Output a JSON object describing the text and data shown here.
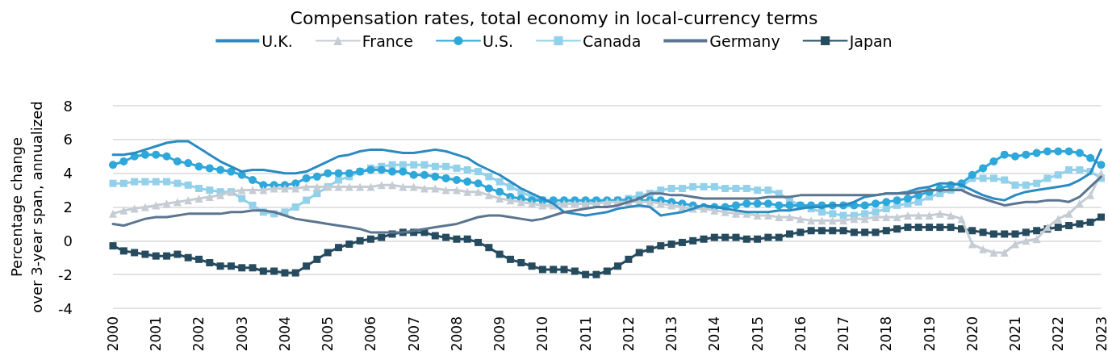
{
  "chart_data": {
    "type": "line",
    "title": "Compensation rates, total economy in local-currency terms",
    "ylabel": "Percentage change\nover 3-year span, annualized",
    "categories": [
      "2000",
      null,
      null,
      null,
      "2001",
      null,
      null,
      null,
      "2002",
      null,
      null,
      null,
      "2003",
      null,
      null,
      null,
      "2004",
      null,
      null,
      null,
      "2005",
      null,
      null,
      null,
      "2006",
      null,
      null,
      null,
      "2007",
      null,
      null,
      null,
      "2008",
      null,
      null,
      null,
      "2009",
      null,
      null,
      null,
      "2010",
      null,
      null,
      null,
      "2011",
      null,
      null,
      null,
      "2012",
      null,
      null,
      null,
      "2013",
      null,
      null,
      null,
      "2014",
      null,
      null,
      null,
      "2015",
      null,
      null,
      null,
      "2016",
      null,
      null,
      null,
      "2017",
      null,
      null,
      null,
      "2018",
      null,
      null,
      null,
      "2019",
      null,
      null,
      null,
      "2020",
      null,
      null,
      null,
      "2021",
      null,
      null,
      null,
      "2022",
      null,
      null,
      null,
      "2023"
    ],
    "series": [
      {
        "name": "U.K.",
        "color": "#2a8bc3",
        "values": [
          5.1,
          5.1,
          5.2,
          5.4,
          5.6,
          5.8,
          5.9,
          5.9,
          5.5,
          5.1,
          4.7,
          4.4,
          4.1,
          4.2,
          4.2,
          4.1,
          4.0,
          4.0,
          4.1,
          4.4,
          4.7,
          5.0,
          5.1,
          5.3,
          5.4,
          5.4,
          5.3,
          5.2,
          5.2,
          5.3,
          5.4,
          5.3,
          5.1,
          4.9,
          4.5,
          4.2,
          3.9,
          3.5,
          3.1,
          2.8,
          2.5,
          2.2,
          1.7,
          1.6,
          1.5,
          1.6,
          1.7,
          1.9,
          2.0,
          2.1,
          2.0,
          1.5,
          1.6,
          1.7,
          1.9,
          2.1,
          2.0,
          1.9,
          1.8,
          1.7,
          1.7,
          1.7,
          1.8,
          1.8,
          1.9,
          2.0,
          2.0,
          2.1,
          2.1,
          2.3,
          2.6,
          2.7,
          2.8,
          2.8,
          2.9,
          3.1,
          3.2,
          3.4,
          3.4,
          3.3,
          3.0,
          2.7,
          2.5,
          2.4,
          2.7,
          2.9,
          3.0,
          3.1,
          3.2,
          3.3,
          3.6,
          4.0,
          5.4
        ]
      },
      {
        "name": "France",
        "color": "#c5ccd3",
        "marker": "triangle",
        "values": [
          1.6,
          1.8,
          1.9,
          2.0,
          2.1,
          2.2,
          2.3,
          2.4,
          2.5,
          2.6,
          2.7,
          2.9,
          3.0,
          3.0,
          3.0,
          3.1,
          3.1,
          3.1,
          3.2,
          3.2,
          3.2,
          3.2,
          3.2,
          3.2,
          3.2,
          3.3,
          3.3,
          3.2,
          3.2,
          3.1,
          3.1,
          3.0,
          3.0,
          2.9,
          2.9,
          2.7,
          2.5,
          2.4,
          2.3,
          2.2,
          2.1,
          2.1,
          2.2,
          2.2,
          2.2,
          2.2,
          2.3,
          2.3,
          2.3,
          2.3,
          2.3,
          2.2,
          2.1,
          2.0,
          1.9,
          1.9,
          1.8,
          1.7,
          1.6,
          1.6,
          1.5,
          1.5,
          1.4,
          1.4,
          1.3,
          1.2,
          1.2,
          1.2,
          1.2,
          1.3,
          1.3,
          1.4,
          1.4,
          1.4,
          1.5,
          1.5,
          1.5,
          1.6,
          1.5,
          1.3,
          -0.2,
          -0.5,
          -0.7,
          -0.7,
          -0.2,
          0.0,
          0.1,
          0.8,
          1.3,
          1.6,
          2.2,
          2.7,
          4.0
        ]
      },
      {
        "name": "U.S.",
        "color": "#2ea7da",
        "marker": "circle",
        "values": [
          4.5,
          4.7,
          5.0,
          5.1,
          5.1,
          5.0,
          4.7,
          4.6,
          4.4,
          4.3,
          4.2,
          4.1,
          3.9,
          3.6,
          3.3,
          3.3,
          3.3,
          3.4,
          3.7,
          3.8,
          4.0,
          4.0,
          4.0,
          4.1,
          4.2,
          4.2,
          4.1,
          4.1,
          3.9,
          3.9,
          3.8,
          3.7,
          3.6,
          3.5,
          3.4,
          3.1,
          2.9,
          2.6,
          2.5,
          2.4,
          2.4,
          2.4,
          2.4,
          2.4,
          2.4,
          2.4,
          2.4,
          2.4,
          2.4,
          2.4,
          2.4,
          2.4,
          2.3,
          2.2,
          2.1,
          2.0,
          2.0,
          2.0,
          2.1,
          2.2,
          2.2,
          2.2,
          2.1,
          2.1,
          2.1,
          2.1,
          2.1,
          2.1,
          2.1,
          2.1,
          2.1,
          2.2,
          2.3,
          2.4,
          2.5,
          2.7,
          2.9,
          3.1,
          3.3,
          3.4,
          3.9,
          4.3,
          4.7,
          5.1,
          5.0,
          5.1,
          5.2,
          5.3,
          5.3,
          5.3,
          5.2,
          4.9,
          4.5
        ]
      },
      {
        "name": "Canada",
        "color": "#93d1ea",
        "marker": "square",
        "values": [
          3.4,
          3.4,
          3.5,
          3.5,
          3.5,
          3.5,
          3.4,
          3.3,
          3.1,
          3.0,
          2.9,
          2.9,
          2.5,
          2.1,
          1.7,
          1.6,
          1.7,
          2.0,
          2.4,
          2.8,
          3.2,
          3.6,
          3.8,
          4.1,
          4.3,
          4.4,
          4.5,
          4.5,
          4.5,
          4.5,
          4.4,
          4.4,
          4.3,
          4.2,
          4.1,
          3.8,
          3.5,
          3.2,
          2.9,
          2.6,
          2.4,
          2.2,
          2.2,
          2.2,
          2.2,
          2.3,
          2.3,
          2.4,
          2.5,
          2.7,
          2.8,
          3.0,
          3.1,
          3.1,
          3.2,
          3.2,
          3.2,
          3.1,
          3.1,
          3.1,
          3.0,
          3.0,
          2.8,
          2.4,
          2.1,
          1.9,
          1.7,
          1.6,
          1.5,
          1.5,
          1.6,
          1.7,
          1.9,
          2.1,
          2.2,
          2.3,
          2.6,
          2.8,
          3.0,
          3.2,
          3.7,
          3.7,
          3.7,
          3.6,
          3.3,
          3.3,
          3.4,
          3.7,
          3.9,
          4.2,
          4.2,
          4.1,
          3.7
        ]
      },
      {
        "name": "Germany",
        "color": "#5b7590",
        "values": [
          1.0,
          0.9,
          1.1,
          1.3,
          1.4,
          1.4,
          1.5,
          1.6,
          1.6,
          1.6,
          1.6,
          1.7,
          1.7,
          1.8,
          1.8,
          1.7,
          1.5,
          1.3,
          1.2,
          1.1,
          1.0,
          0.9,
          0.8,
          0.7,
          0.5,
          0.5,
          0.5,
          0.5,
          0.6,
          0.7,
          0.8,
          0.9,
          1.0,
          1.2,
          1.4,
          1.5,
          1.5,
          1.4,
          1.3,
          1.2,
          1.3,
          1.5,
          1.7,
          1.8,
          1.9,
          2.0,
          2.0,
          2.1,
          2.3,
          2.5,
          2.8,
          2.8,
          2.7,
          2.7,
          2.6,
          2.5,
          2.5,
          2.5,
          2.5,
          2.5,
          2.5,
          2.6,
          2.6,
          2.6,
          2.7,
          2.7,
          2.7,
          2.7,
          2.7,
          2.7,
          2.7,
          2.7,
          2.8,
          2.8,
          2.8,
          2.9,
          3.0,
          3.0,
          3.0,
          3.0,
          2.7,
          2.5,
          2.3,
          2.1,
          2.2,
          2.3,
          2.3,
          2.4,
          2.4,
          2.3,
          2.6,
          3.2,
          3.8
        ]
      },
      {
        "name": "Japan",
        "color": "#264b5f",
        "marker": "square",
        "values": [
          -0.3,
          -0.6,
          -0.7,
          -0.8,
          -0.9,
          -0.9,
          -0.8,
          -1.0,
          -1.1,
          -1.3,
          -1.5,
          -1.5,
          -1.6,
          -1.6,
          -1.8,
          -1.8,
          -1.9,
          -1.9,
          -1.5,
          -1.1,
          -0.7,
          -0.4,
          -0.2,
          0.0,
          0.1,
          0.2,
          0.4,
          0.5,
          0.5,
          0.5,
          0.3,
          0.2,
          0.1,
          0.1,
          -0.1,
          -0.4,
          -0.8,
          -1.1,
          -1.3,
          -1.5,
          -1.7,
          -1.7,
          -1.7,
          -1.8,
          -2.0,
          -2.0,
          -1.8,
          -1.5,
          -1.1,
          -0.7,
          -0.5,
          -0.3,
          -0.2,
          -0.1,
          0.0,
          0.1,
          0.2,
          0.2,
          0.2,
          0.1,
          0.1,
          0.2,
          0.2,
          0.4,
          0.5,
          0.6,
          0.6,
          0.6,
          0.6,
          0.5,
          0.5,
          0.5,
          0.6,
          0.7,
          0.8,
          0.8,
          0.8,
          0.8,
          0.8,
          0.7,
          0.6,
          0.5,
          0.4,
          0.4,
          0.4,
          0.5,
          0.6,
          0.7,
          0.8,
          0.9,
          1.0,
          1.1,
          1.4
        ]
      }
    ],
    "ylim": [
      -4,
      8
    ],
    "yticks": [
      -4,
      -2,
      0,
      2,
      4,
      6,
      8
    ],
    "grid": "y",
    "legend": "top"
  }
}
